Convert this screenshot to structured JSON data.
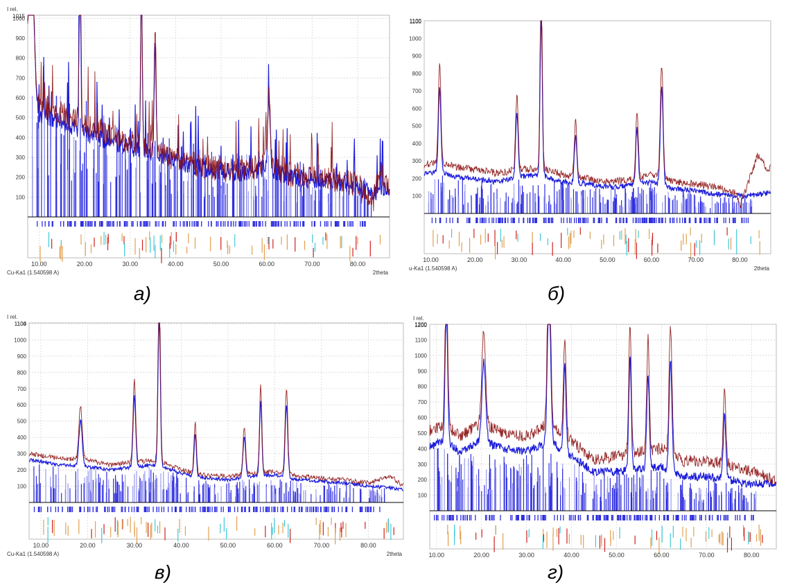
{
  "colors": {
    "measured_blue": "#1010d8",
    "calc_red": "#8b1010",
    "bars_blue": "#2d2de0",
    "bars_light": "#9a9af0",
    "ticks_orange": "#e0a050",
    "ticks_red": "#d02020",
    "ticks_cyan": "#40c8d8",
    "grid": "#d6d6d6"
  },
  "captions": [
    "а)",
    "б)",
    "в)",
    "г)"
  ],
  "chart_data": [
    {
      "type": "line",
      "title": "",
      "ylabel": "I rel.",
      "xlabel": "2theta",
      "radiation": "Cu-Ka1 (1.540598 A)",
      "top_label": "1015",
      "xlim": [
        7.5,
        87.0
      ],
      "ylim": [
        0,
        1015
      ],
      "grid": true,
      "x_ticks": [
        "10.00",
        "20.00",
        "30.00",
        "40.00",
        "50.00",
        "60.00",
        "70.00",
        "80.00"
      ],
      "y_ticks": [
        "100",
        "200",
        "300",
        "400",
        "500",
        "600",
        "700",
        "800",
        "900",
        "1000"
      ],
      "peaks": [
        {
          "x": 8.3,
          "y": 920,
          "w": 0.6
        },
        {
          "x": 19.0,
          "y": 1015,
          "w": 0.25
        },
        {
          "x": 32.5,
          "y": 1005,
          "w": 0.25
        },
        {
          "x": 35.5,
          "y": 650,
          "w": 0.3
        },
        {
          "x": 60.5,
          "y": 400,
          "w": 0.4
        }
      ],
      "series": [
        {
          "values": [
            [
              8,
              900
            ],
            [
              10,
              520
            ],
            [
              15,
              480
            ],
            [
              20,
              420
            ],
            [
              25,
              380
            ],
            [
              30,
              350
            ],
            [
              35,
              320
            ],
            [
              40,
              280
            ],
            [
              45,
              250
            ],
            [
              50,
              230
            ],
            [
              55,
              220
            ],
            [
              60,
              250
            ],
            [
              65,
              200
            ],
            [
              70,
              190
            ],
            [
              75,
              180
            ],
            [
              80,
              150
            ],
            [
              83,
              120
            ],
            [
              87,
              140
            ]
          ],
          "color": "#1010d8"
        },
        {
          "values": [
            [
              8,
              880
            ],
            [
              10,
              560
            ],
            [
              15,
              520
            ],
            [
              20,
              470
            ],
            [
              25,
              420
            ],
            [
              30,
              380
            ],
            [
              35,
              330
            ],
            [
              40,
              290
            ],
            [
              45,
              260
            ],
            [
              50,
              240
            ],
            [
              55,
              230
            ],
            [
              60,
              270
            ],
            [
              65,
              210
            ],
            [
              70,
              200
            ],
            [
              75,
              190
            ],
            [
              80,
              160
            ],
            [
              83,
              40
            ],
            [
              85,
              250
            ],
            [
              86,
              160
            ]
          ],
          "color": "#8b1010"
        }
      ]
    },
    {
      "type": "line",
      "title": "",
      "ylabel": "",
      "xlabel": "2theta",
      "radiation": "u-Ka1 (1.540598 A)",
      "top_label": "1100",
      "xlim": [
        8.5,
        87.0
      ],
      "ylim": [
        0,
        1100
      ],
      "grid": false,
      "x_ticks": [
        "10.00",
        "20.00",
        "30.00",
        "40.00",
        "50.00",
        "60.00",
        "70.00",
        "80.00"
      ],
      "y_ticks": [
        "100",
        "200",
        "300",
        "400",
        "500",
        "600",
        "700",
        "800",
        "900",
        "1000",
        "1100"
      ],
      "peaks": [
        {
          "x": 12.0,
          "y": 560,
          "w": 0.4
        },
        {
          "x": 29.5,
          "y": 440,
          "w": 0.4
        },
        {
          "x": 35.0,
          "y": 1090,
          "w": 0.35
        },
        {
          "x": 42.8,
          "y": 320,
          "w": 0.4
        },
        {
          "x": 56.7,
          "y": 380,
          "w": 0.4
        },
        {
          "x": 62.3,
          "y": 650,
          "w": 0.45
        }
      ],
      "series": [
        {
          "values": [
            [
              9,
              230
            ],
            [
              12,
              240
            ],
            [
              15,
              210
            ],
            [
              20,
              200
            ],
            [
              25,
              180
            ],
            [
              30,
              210
            ],
            [
              35,
              220
            ],
            [
              40,
              180
            ],
            [
              45,
              170
            ],
            [
              50,
              150
            ],
            [
              55,
              160
            ],
            [
              60,
              180
            ],
            [
              65,
              140
            ],
            [
              70,
              130
            ],
            [
              75,
              110
            ],
            [
              80,
              100
            ],
            [
              85,
              110
            ],
            [
              87,
              120
            ]
          ],
          "color": "#1010d8"
        },
        {
          "values": [
            [
              9,
              280
            ],
            [
              12,
              300
            ],
            [
              15,
              270
            ],
            [
              20,
              250
            ],
            [
              25,
              230
            ],
            [
              30,
              250
            ],
            [
              35,
              260
            ],
            [
              40,
              220
            ],
            [
              45,
              200
            ],
            [
              50,
              180
            ],
            [
              55,
              190
            ],
            [
              60,
              220
            ],
            [
              65,
              180
            ],
            [
              70,
              170
            ],
            [
              75,
              150
            ],
            [
              79,
              120
            ],
            [
              80,
              40
            ],
            [
              84,
              330
            ],
            [
              86,
              260
            ]
          ],
          "color": "#8b1010"
        }
      ]
    },
    {
      "type": "line",
      "title": "",
      "ylabel": "I rel.",
      "xlabel": "2theta",
      "radiation": "Cu-Ka1 (1.540598 A)",
      "top_label": "1104",
      "xlim": [
        7.5,
        87.5
      ],
      "ylim": [
        0,
        1104
      ],
      "grid": true,
      "x_ticks": [
        "10.00",
        "20.00",
        "30.00",
        "40.00",
        "50.00",
        "60.00",
        "70.00",
        "80.00"
      ],
      "y_ticks": [
        "100",
        "200",
        "300",
        "400",
        "500",
        "600",
        "700",
        "800",
        "900",
        "1000",
        "1100"
      ],
      "peaks": [
        {
          "x": 18.5,
          "y": 330,
          "w": 0.5
        },
        {
          "x": 30.0,
          "y": 510,
          "w": 0.4
        },
        {
          "x": 35.3,
          "y": 1104,
          "w": 0.35
        },
        {
          "x": 43.0,
          "y": 310,
          "w": 0.35
        },
        {
          "x": 53.5,
          "y": 290,
          "w": 0.4
        },
        {
          "x": 57.0,
          "y": 540,
          "w": 0.35
        },
        {
          "x": 62.5,
          "y": 530,
          "w": 0.4
        }
      ],
      "series": [
        {
          "values": [
            [
              8,
              260
            ],
            [
              12,
              240
            ],
            [
              15,
              230
            ],
            [
              20,
              220
            ],
            [
              25,
              200
            ],
            [
              30,
              220
            ],
            [
              35,
              230
            ],
            [
              40,
              180
            ],
            [
              45,
              150
            ],
            [
              50,
              140
            ],
            [
              55,
              160
            ],
            [
              60,
              170
            ],
            [
              65,
              140
            ],
            [
              70,
              130
            ],
            [
              75,
              120
            ],
            [
              80,
              100
            ],
            [
              85,
              90
            ],
            [
              87,
              80
            ]
          ],
          "color": "#1010d8"
        },
        {
          "values": [
            [
              8,
              300
            ],
            [
              12,
              280
            ],
            [
              15,
              270
            ],
            [
              20,
              260
            ],
            [
              25,
              230
            ],
            [
              30,
              250
            ],
            [
              35,
              260
            ],
            [
              40,
              200
            ],
            [
              45,
              170
            ],
            [
              50,
              160
            ],
            [
              55,
              180
            ],
            [
              60,
              190
            ],
            [
              65,
              160
            ],
            [
              70,
              150
            ],
            [
              75,
              140
            ],
            [
              80,
              120
            ],
            [
              85,
              160
            ],
            [
              87,
              110
            ]
          ],
          "color": "#8b1010"
        }
      ]
    },
    {
      "type": "line",
      "title": "",
      "ylabel": "I rel.",
      "xlabel": "",
      "radiation": "",
      "top_label": "1200",
      "xlim": [
        8.5,
        85.5
      ],
      "ylim": [
        0,
        1200
      ],
      "grid": true,
      "x_ticks": [
        "10.00",
        "20.00",
        "30.00",
        "40.00",
        "50.00",
        "60.00",
        "70.00",
        "80.00"
      ],
      "y_ticks": [
        "100",
        "200",
        "300",
        "400",
        "500",
        "600",
        "700",
        "800",
        "900",
        "1000",
        "1100",
        "1200"
      ],
      "peaks": [
        {
          "x": 12.2,
          "y": 1010,
          "w": 0.4
        },
        {
          "x": 20.5,
          "y": 600,
          "w": 0.6
        },
        {
          "x": 35.0,
          "y": 1190,
          "w": 0.5
        },
        {
          "x": 38.5,
          "y": 650,
          "w": 0.4
        },
        {
          "x": 53.0,
          "y": 840,
          "w": 0.4
        },
        {
          "x": 57.0,
          "y": 720,
          "w": 0.4
        },
        {
          "x": 62.0,
          "y": 830,
          "w": 0.45
        },
        {
          "x": 74.0,
          "y": 500,
          "w": 0.4
        }
      ],
      "series": [
        {
          "values": [
            [
              9,
              420
            ],
            [
              12,
              450
            ],
            [
              15,
              380
            ],
            [
              20,
              450
            ],
            [
              25,
              400
            ],
            [
              30,
              380
            ],
            [
              35,
              450
            ],
            [
              40,
              350
            ],
            [
              45,
              250
            ],
            [
              50,
              250
            ],
            [
              55,
              270
            ],
            [
              60,
              280
            ],
            [
              65,
              220
            ],
            [
              70,
              220
            ],
            [
              75,
              200
            ],
            [
              80,
              170
            ],
            [
              85,
              180
            ]
          ],
          "color": "#1010d8"
        },
        {
          "values": [
            [
              9,
              520
            ],
            [
              12,
              560
            ],
            [
              15,
              480
            ],
            [
              20,
              560
            ],
            [
              25,
              500
            ],
            [
              30,
              480
            ],
            [
              35,
              560
            ],
            [
              40,
              450
            ],
            [
              45,
              330
            ],
            [
              50,
              350
            ],
            [
              55,
              380
            ],
            [
              60,
              400
            ],
            [
              65,
              320
            ],
            [
              70,
              320
            ],
            [
              75,
              300
            ],
            [
              80,
              250
            ],
            [
              85,
              200
            ]
          ],
          "color": "#8b1010"
        }
      ]
    }
  ]
}
